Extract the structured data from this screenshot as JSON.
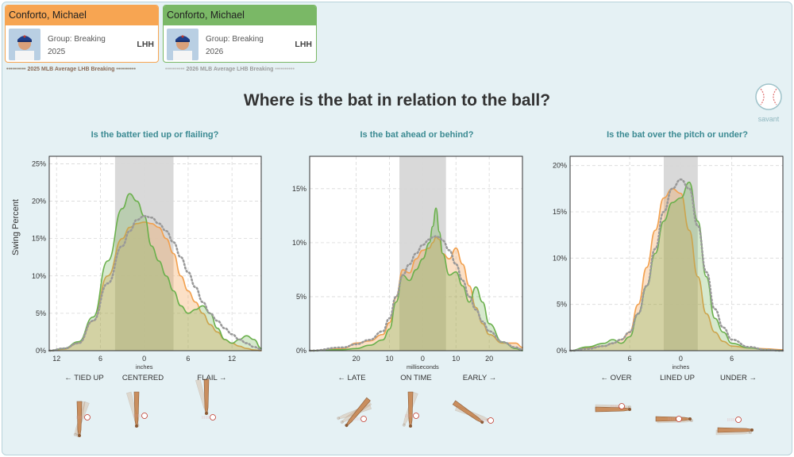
{
  "title": "Where is the bat in relation to the ball?",
  "colors": {
    "orange": "#f2a04e",
    "green": "#6ab04c",
    "shade": "#d9d9d9",
    "avg": "#999999"
  },
  "cards": [
    {
      "name": "Conforto, Michael",
      "group": "Group: Breaking",
      "year": "2025",
      "hand": "LHH",
      "color": "#f7a552"
    },
    {
      "name": "Conforto, Michael",
      "group": "Group: Breaking",
      "year": "2026",
      "hand": "LHH",
      "color": "#7ab866"
    }
  ],
  "averages": [
    "2025 MLB Average LHB Breaking",
    "2026 MLB Average LHB Breaking"
  ],
  "logo_text": "savant",
  "panels": [
    {
      "subtitle": "Is the batter tied up or flailing?",
      "ylabel": "Swing Percent",
      "xunit": "inches",
      "cat_labels": [
        "← TIED UP",
        "CENTERED",
        "FLAIL →"
      ]
    },
    {
      "subtitle": "Is the bat ahead or behind?",
      "xunit": "milliseconds",
      "cat_labels": [
        "← LATE",
        "ON TIME",
        "EARLY →"
      ]
    },
    {
      "subtitle": "Is the bat over the pitch or under?",
      "xunit": "inches",
      "cat_labels": [
        "← OVER",
        "LINED UP",
        "UNDER →"
      ]
    }
  ],
  "chart_data": [
    {
      "type": "area",
      "xlabel": "inches",
      "ylabel": "Swing Percent",
      "xlim": [
        -13,
        16
      ],
      "ylim": [
        0,
        26
      ],
      "xticks": [
        -12,
        -6,
        0,
        6,
        12
      ],
      "xticklabels": [
        "12",
        "6",
        "0",
        "6",
        "12"
      ],
      "yticks": [
        0,
        5,
        10,
        15,
        20,
        25
      ],
      "yticklabels": [
        "0%",
        "5%",
        "10%",
        "15%",
        "20%",
        "25%"
      ],
      "shaded_band": [
        -4,
        4
      ],
      "x": [
        -13,
        -11,
        -9,
        -7,
        -5,
        -3,
        -2,
        -1,
        0,
        1,
        2,
        3,
        4,
        5,
        6,
        7,
        8,
        9,
        10,
        11,
        12,
        13,
        14,
        15,
        16
      ],
      "series": [
        {
          "values": [
            0,
            0.2,
            1,
            4,
            10,
            15,
            16.5,
            17,
            17.2,
            17,
            16.5,
            15,
            13,
            10,
            8,
            6.5,
            5,
            3.5,
            2.5,
            1.5,
            1,
            0.6,
            0.3,
            0.1,
            0
          ]
        },
        {
          "values": [
            0,
            0.3,
            1.2,
            4.5,
            12,
            19,
            21,
            20,
            18,
            14,
            12,
            10,
            8,
            6,
            5,
            5.5,
            6,
            5,
            3,
            1.5,
            1,
            1.5,
            2,
            1.5,
            0.3
          ]
        },
        {
          "values": [
            0,
            0.3,
            1,
            4,
            9,
            14,
            16,
            17.5,
            18,
            17.8,
            17,
            16,
            14.5,
            12.5,
            10.5,
            8.5,
            6.5,
            5,
            4,
            3,
            2.2,
            1.5,
            1,
            0.5,
            0.2
          ]
        }
      ]
    },
    {
      "type": "area",
      "xlabel": "milliseconds",
      "xlim": [
        -34,
        30
      ],
      "ylim": [
        0,
        18
      ],
      "xticks": [
        -20,
        -10,
        0,
        10,
        20
      ],
      "xticklabels": [
        "20",
        "10",
        "0",
        "10",
        "20"
      ],
      "yticks": [
        0,
        5,
        10,
        15
      ],
      "yticklabels": [
        "0%",
        "5%",
        "10%",
        "15%"
      ],
      "shaded_band": [
        -7,
        7
      ],
      "x": [
        -34,
        -24,
        -20,
        -16,
        -12,
        -10,
        -8,
        -6,
        -4,
        -2,
        0,
        2,
        3,
        4,
        5,
        6,
        8,
        10,
        12,
        14,
        16,
        18,
        20,
        24,
        28,
        30
      ],
      "series": [
        {
          "values": [
            0,
            0.2,
            0.7,
            0.9,
            1.5,
            2.6,
            5,
            7.5,
            7.2,
            8.5,
            9.3,
            9.5,
            10,
            10.5,
            10.3,
            9,
            8.5,
            9.5,
            8,
            6,
            4,
            2.5,
            1.5,
            0.7,
            0.7,
            0.3
          ]
        },
        {
          "values": [
            0,
            0.1,
            0.2,
            0.5,
            1,
            2,
            4.5,
            7,
            6.5,
            7.5,
            8.5,
            10,
            11.5,
            13.2,
            11,
            9,
            7,
            7.3,
            6,
            4.5,
            5.9,
            4.5,
            2.5,
            0.8,
            0.2,
            0
          ]
        },
        {
          "values": [
            0,
            0.3,
            0.6,
            1,
            1.8,
            3,
            5,
            7,
            8,
            9,
            9.8,
            10.3,
            10.5,
            10.6,
            10.5,
            10.2,
            9.3,
            8,
            6.5,
            5,
            3.8,
            2.7,
            1.8,
            0.8,
            0.3,
            0.1
          ]
        }
      ]
    },
    {
      "type": "area",
      "xlabel": "inches",
      "xlim": [
        -13,
        12
      ],
      "ylim": [
        0,
        21
      ],
      "xticks": [
        -6,
        0,
        6
      ],
      "xticklabels": [
        "6",
        "0",
        "6"
      ],
      "yticks": [
        0,
        5,
        10,
        15,
        20
      ],
      "yticklabels": [
        "0%",
        "5%",
        "10%",
        "15%",
        "20%"
      ],
      "shaded_band": [
        -2,
        2
      ],
      "x": [
        -13,
        -11,
        -9,
        -8,
        -7,
        -6,
        -5,
        -4,
        -3,
        -2,
        -1,
        0,
        1,
        2,
        3,
        4,
        5,
        6,
        8,
        10,
        12
      ],
      "series": [
        {
          "values": [
            0,
            0.3,
            0.5,
            0.8,
            1.2,
            2,
            5,
            9,
            13,
            16.5,
            17.5,
            17,
            13,
            8,
            4,
            2,
            1,
            0.5,
            0.3,
            0.2,
            0.1
          ]
        },
        {
          "values": [
            0,
            0.4,
            0.8,
            1.2,
            0.8,
            1.5,
            4,
            7,
            10.5,
            14,
            16,
            16.5,
            18.2,
            14,
            8,
            3.5,
            2,
            0.8,
            0.3,
            0.1,
            0
          ]
        },
        {
          "values": [
            0,
            0.2,
            0.5,
            0.8,
            1.2,
            2,
            4,
            7,
            11,
            15,
            17.5,
            18.5,
            17.5,
            13.5,
            8.5,
            4.5,
            2.5,
            1.2,
            0.4,
            0.1,
            0
          ]
        }
      ]
    }
  ]
}
